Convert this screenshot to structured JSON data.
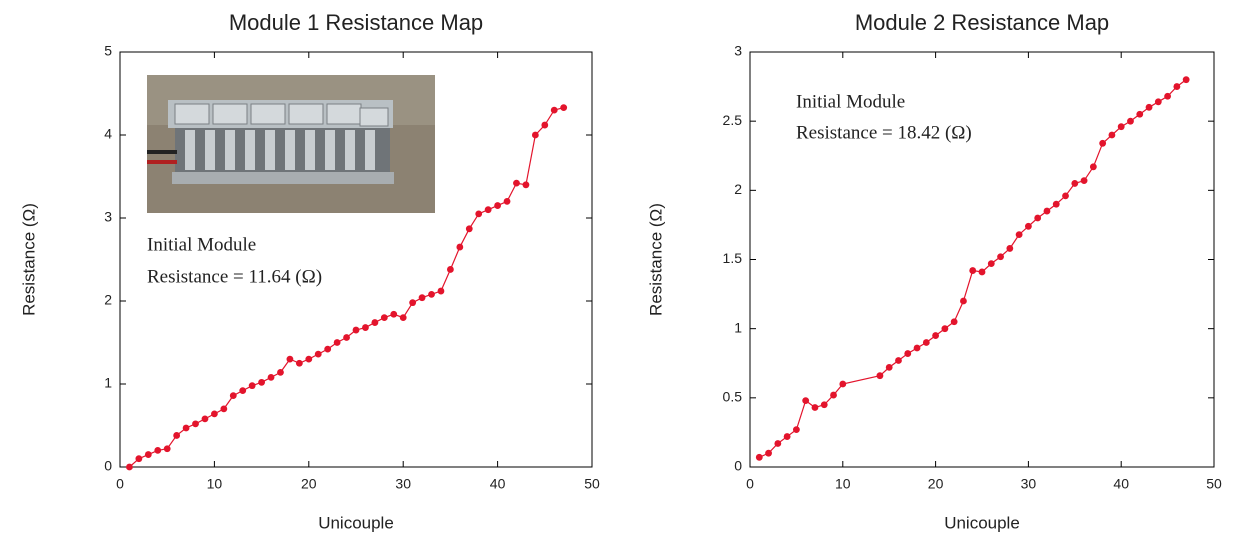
{
  "chart_data": [
    {
      "type": "line",
      "title": "Module 1 Resistance Map",
      "x_label": "Unicouple",
      "y_label": "Resistance (Ω)",
      "annotations": [
        "Initial Module",
        "Resistance = 11.64 (Ω)"
      ],
      "color": "#e3142c",
      "x": [
        1,
        2,
        3,
        4,
        5,
        6,
        7,
        8,
        9,
        10,
        11,
        12,
        13,
        14,
        15,
        16,
        17,
        18,
        19,
        20,
        21,
        22,
        23,
        24,
        25,
        26,
        27,
        28,
        29,
        30,
        31,
        32,
        33,
        34,
        35,
        36,
        37,
        38,
        39,
        40,
        41,
        42,
        43,
        44,
        45,
        46,
        47
      ],
      "values": [
        0.0,
        0.1,
        0.15,
        0.2,
        0.22,
        0.38,
        0.47,
        0.52,
        0.58,
        0.64,
        0.7,
        0.86,
        0.92,
        0.98,
        1.02,
        1.08,
        1.14,
        1.3,
        1.25,
        1.3,
        1.36,
        1.42,
        1.5,
        1.56,
        1.65,
        1.68,
        1.74,
        1.8,
        1.84,
        1.8,
        1.98,
        2.04,
        2.08,
        2.12,
        2.38,
        2.65,
        2.87,
        3.05,
        3.1,
        3.15,
        3.2,
        3.42,
        3.4,
        4.0,
        4.12,
        4.3,
        4.33
      ],
      "xlim": [
        0,
        50
      ],
      "xticks": [
        0,
        10,
        20,
        30,
        40,
        50
      ],
      "ylim": [
        0,
        5
      ],
      "yticks": [
        0,
        1,
        2,
        3,
        4,
        5
      ]
    },
    {
      "type": "line",
      "title": "Module 2 Resistance Map",
      "x_label": "Unicouple",
      "y_label": "Resistance (Ω)",
      "annotations": [
        "Initial Module",
        "Resistance = 18.42 (Ω)"
      ],
      "color": "#e3142c",
      "x": [
        1,
        2,
        3,
        4,
        5,
        6,
        7,
        8,
        9,
        10,
        14,
        15,
        16,
        17,
        18,
        19,
        20,
        21,
        22,
        23,
        24,
        25,
        26,
        27,
        28,
        29,
        30,
        31,
        32,
        33,
        34,
        35,
        36,
        37,
        38,
        39,
        40,
        41,
        42,
        43,
        44,
        45,
        46,
        47
      ],
      "values": [
        0.07,
        0.1,
        0.17,
        0.22,
        0.27,
        0.48,
        0.43,
        0.45,
        0.52,
        0.6,
        0.66,
        0.72,
        0.77,
        0.82,
        0.86,
        0.9,
        0.95,
        1.0,
        1.05,
        1.2,
        1.42,
        1.41,
        1.47,
        1.52,
        1.58,
        1.68,
        1.74,
        1.8,
        1.85,
        1.9,
        1.96,
        2.05,
        2.07,
        2.17,
        2.34,
        2.4,
        2.46,
        2.5,
        2.55,
        2.6,
        2.64,
        2.68,
        2.75,
        2.8
      ],
      "xlim": [
        0,
        50
      ],
      "xticks": [
        0,
        10,
        20,
        30,
        40,
        50
      ],
      "ylim": [
        0,
        3
      ],
      "yticks": [
        0,
        0.5,
        1,
        1.5,
        2,
        2.5,
        3
      ]
    }
  ]
}
